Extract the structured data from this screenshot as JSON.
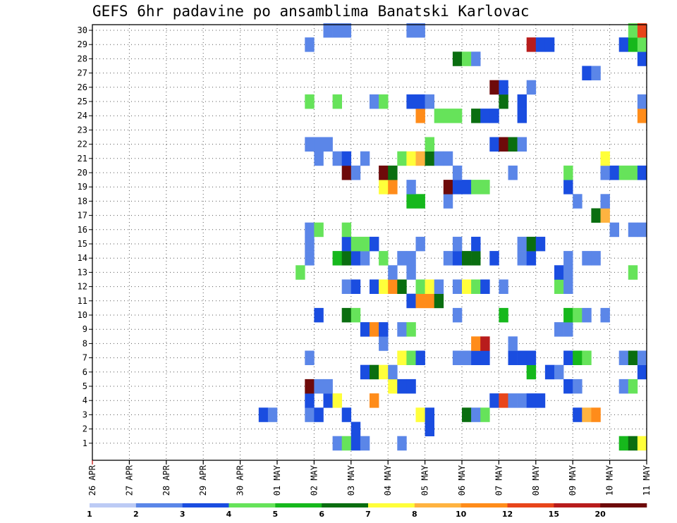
{
  "title": "GEFS 6hr padavine po ansamblima Banatski Karlovac",
  "chart_data": {
    "type": "heatmap",
    "title": "GEFS 6hr padavine po ansamblima Banatski Karlovac",
    "x_ticks": [
      "26 APR",
      "27 APR",
      "28 APR",
      "29 APR",
      "30 APR",
      "01 MAY",
      "02 MAY",
      "03 MAY",
      "04 MAY",
      "05 MAY",
      "06 MAY",
      "07 MAY",
      "08 MAY",
      "09 MAY",
      "10 MAY",
      "11 MAY"
    ],
    "y_ticks": [
      1,
      2,
      3,
      4,
      5,
      6,
      7,
      8,
      9,
      10,
      11,
      12,
      13,
      14,
      15,
      16,
      17,
      18,
      19,
      20,
      21,
      22,
      23,
      24,
      25,
      26,
      27,
      28,
      29,
      30
    ],
    "x_unit": "6-hour step (step 0 = 26 APR 00Z)",
    "y_label": "",
    "grid": true,
    "legend_levels": [
      "1",
      "2",
      "3",
      "4",
      "5",
      "6",
      "7",
      "8",
      "10",
      "12",
      "15",
      "20"
    ],
    "legend_colors": [
      "#bccbf5",
      "#5b86e8",
      "#1a4de0",
      "#66e35a",
      "#16b81c",
      "#0a6e10",
      "#ffff3a",
      "#ffb340",
      "#ff8c1a",
      "#e8451a",
      "#b81c1c",
      "#6e0a0a"
    ],
    "cells": [
      [
        1,
        26,
        1
      ],
      [
        1,
        27,
        3
      ],
      [
        1,
        28,
        2
      ],
      [
        1,
        29,
        1
      ],
      [
        1,
        33,
        1
      ],
      [
        1,
        57,
        4
      ],
      [
        1,
        58,
        5
      ],
      [
        1,
        59,
        6
      ],
      [
        2,
        28,
        2
      ],
      [
        2,
        36,
        2
      ],
      [
        3,
        18,
        2
      ],
      [
        3,
        19,
        1
      ],
      [
        3,
        23,
        1
      ],
      [
        3,
        24,
        2
      ],
      [
        3,
        27,
        2
      ],
      [
        3,
        35,
        6
      ],
      [
        3,
        36,
        2
      ],
      [
        3,
        40,
        5
      ],
      [
        3,
        41,
        1
      ],
      [
        3,
        42,
        3
      ],
      [
        3,
        52,
        2
      ],
      [
        3,
        53,
        7
      ],
      [
        3,
        54,
        8
      ],
      [
        4,
        23,
        2
      ],
      [
        4,
        25,
        2
      ],
      [
        4,
        26,
        6
      ],
      [
        4,
        30,
        8
      ],
      [
        4,
        43,
        2
      ],
      [
        4,
        44,
        9
      ],
      [
        4,
        45,
        1
      ],
      [
        4,
        46,
        1
      ],
      [
        4,
        47,
        2
      ],
      [
        4,
        48,
        2
      ],
      [
        5,
        23,
        11
      ],
      [
        5,
        24,
        1
      ],
      [
        5,
        25,
        1
      ],
      [
        5,
        32,
        6
      ],
      [
        5,
        33,
        2
      ],
      [
        5,
        34,
        2
      ],
      [
        5,
        51,
        2
      ],
      [
        5,
        52,
        1
      ],
      [
        5,
        57,
        1
      ],
      [
        5,
        58,
        3
      ],
      [
        6,
        29,
        2
      ],
      [
        6,
        30,
        5
      ],
      [
        6,
        31,
        6
      ],
      [
        6,
        32,
        1
      ],
      [
        6,
        47,
        4
      ],
      [
        6,
        49,
        2
      ],
      [
        6,
        50,
        1
      ],
      [
        6,
        59,
        2
      ],
      [
        7,
        23,
        1
      ],
      [
        7,
        33,
        6
      ],
      [
        7,
        34,
        3
      ],
      [
        7,
        35,
        2
      ],
      [
        7,
        39,
        1
      ],
      [
        7,
        40,
        1
      ],
      [
        7,
        41,
        2
      ],
      [
        7,
        42,
        2
      ],
      [
        7,
        45,
        2
      ],
      [
        7,
        46,
        2
      ],
      [
        7,
        47,
        2
      ],
      [
        7,
        51,
        2
      ],
      [
        7,
        52,
        4
      ],
      [
        7,
        53,
        3
      ],
      [
        7,
        57,
        1
      ],
      [
        7,
        58,
        5
      ],
      [
        7,
        59,
        1
      ],
      [
        8,
        31,
        1
      ],
      [
        8,
        41,
        8
      ],
      [
        8,
        42,
        10
      ],
      [
        8,
        45,
        1
      ],
      [
        9,
        29,
        2
      ],
      [
        9,
        30,
        8
      ],
      [
        9,
        31,
        2
      ],
      [
        9,
        33,
        1
      ],
      [
        9,
        34,
        3
      ],
      [
        9,
        50,
        1
      ],
      [
        9,
        51,
        1
      ],
      [
        10,
        24,
        2
      ],
      [
        10,
        27,
        5
      ],
      [
        10,
        28,
        3
      ],
      [
        10,
        39,
        1
      ],
      [
        10,
        44,
        4
      ],
      [
        10,
        51,
        4
      ],
      [
        10,
        52,
        3
      ],
      [
        10,
        53,
        1
      ],
      [
        10,
        55,
        1
      ],
      [
        11,
        34,
        2
      ],
      [
        11,
        35,
        8
      ],
      [
        11,
        36,
        8
      ],
      [
        11,
        37,
        5
      ],
      [
        12,
        27,
        1
      ],
      [
        12,
        28,
        2
      ],
      [
        12,
        30,
        2
      ],
      [
        12,
        31,
        6
      ],
      [
        12,
        32,
        8
      ],
      [
        12,
        33,
        5
      ],
      [
        12,
        35,
        3
      ],
      [
        12,
        36,
        6
      ],
      [
        12,
        37,
        1
      ],
      [
        12,
        39,
        1
      ],
      [
        12,
        40,
        6
      ],
      [
        12,
        41,
        3
      ],
      [
        12,
        42,
        2
      ],
      [
        12,
        44,
        1
      ],
      [
        12,
        50,
        3
      ],
      [
        12,
        51,
        1
      ],
      [
        13,
        22,
        3
      ],
      [
        13,
        32,
        1
      ],
      [
        13,
        34,
        1
      ],
      [
        13,
        50,
        2
      ],
      [
        13,
        51,
        1
      ],
      [
        13,
        58,
        3
      ],
      [
        14,
        23,
        1
      ],
      [
        14,
        26,
        4
      ],
      [
        14,
        27,
        5
      ],
      [
        14,
        28,
        2
      ],
      [
        14,
        29,
        1
      ],
      [
        14,
        31,
        3
      ],
      [
        14,
        33,
        1
      ],
      [
        14,
        34,
        1
      ],
      [
        14,
        38,
        1
      ],
      [
        14,
        39,
        2
      ],
      [
        14,
        40,
        5
      ],
      [
        14,
        41,
        5
      ],
      [
        14,
        43,
        2
      ],
      [
        14,
        46,
        1
      ],
      [
        14,
        47,
        2
      ],
      [
        14,
        51,
        1
      ],
      [
        14,
        53,
        1
      ],
      [
        14,
        54,
        1
      ],
      [
        15,
        23,
        1
      ],
      [
        15,
        27,
        2
      ],
      [
        15,
        28,
        3
      ],
      [
        15,
        29,
        3
      ],
      [
        15,
        30,
        2
      ],
      [
        15,
        35,
        1
      ],
      [
        15,
        39,
        1
      ],
      [
        15,
        41,
        2
      ],
      [
        15,
        46,
        1
      ],
      [
        15,
        47,
        5
      ],
      [
        15,
        48,
        2
      ],
      [
        16,
        23,
        1
      ],
      [
        16,
        24,
        3
      ],
      [
        16,
        27,
        3
      ],
      [
        16,
        56,
        1
      ],
      [
        16,
        58,
        1
      ],
      [
        16,
        59,
        1
      ],
      [
        17,
        54,
        5
      ],
      [
        17,
        55,
        7
      ],
      [
        18,
        34,
        4
      ],
      [
        18,
        35,
        4
      ],
      [
        18,
        38,
        1
      ],
      [
        18,
        52,
        1
      ],
      [
        18,
        55,
        1
      ],
      [
        19,
        31,
        6
      ],
      [
        19,
        32,
        8
      ],
      [
        19,
        34,
        1
      ],
      [
        19,
        38,
        11
      ],
      [
        19,
        39,
        2
      ],
      [
        19,
        40,
        2
      ],
      [
        19,
        41,
        3
      ],
      [
        19,
        42,
        3
      ],
      [
        19,
        51,
        2
      ],
      [
        20,
        27,
        11
      ],
      [
        20,
        28,
        1
      ],
      [
        20,
        31,
        11
      ],
      [
        20,
        32,
        5
      ],
      [
        20,
        39,
        1
      ],
      [
        20,
        45,
        1
      ],
      [
        20,
        51,
        3
      ],
      [
        20,
        55,
        1
      ],
      [
        20,
        56,
        2
      ],
      [
        20,
        57,
        3
      ],
      [
        20,
        58,
        3
      ],
      [
        20,
        59,
        2
      ],
      [
        21,
        24,
        1
      ],
      [
        21,
        26,
        1
      ],
      [
        21,
        27,
        2
      ],
      [
        21,
        29,
        1
      ],
      [
        21,
        33,
        3
      ],
      [
        21,
        34,
        6
      ],
      [
        21,
        35,
        7
      ],
      [
        21,
        36,
        5
      ],
      [
        21,
        37,
        1
      ],
      [
        21,
        38,
        1
      ],
      [
        21,
        55,
        6
      ],
      [
        22,
        23,
        1
      ],
      [
        22,
        24,
        1
      ],
      [
        22,
        25,
        1
      ],
      [
        22,
        36,
        3
      ],
      [
        22,
        43,
        2
      ],
      [
        22,
        44,
        11
      ],
      [
        22,
        45,
        5
      ],
      [
        22,
        46,
        1
      ],
      [
        24,
        35,
        8
      ],
      [
        24,
        37,
        3
      ],
      [
        24,
        38,
        3
      ],
      [
        24,
        39,
        3
      ],
      [
        24,
        41,
        5
      ],
      [
        24,
        42,
        2
      ],
      [
        24,
        43,
        2
      ],
      [
        24,
        46,
        2
      ],
      [
        24,
        59,
        8
      ],
      [
        25,
        23,
        3
      ],
      [
        25,
        26,
        3
      ],
      [
        25,
        30,
        1
      ],
      [
        25,
        31,
        3
      ],
      [
        25,
        34,
        2
      ],
      [
        25,
        35,
        2
      ],
      [
        25,
        36,
        1
      ],
      [
        25,
        44,
        5
      ],
      [
        25,
        46,
        2
      ],
      [
        25,
        59,
        1
      ],
      [
        26,
        43,
        11
      ],
      [
        26,
        44,
        2
      ],
      [
        26,
        47,
        1
      ],
      [
        27,
        53,
        2
      ],
      [
        27,
        54,
        1
      ],
      [
        28,
        39,
        5
      ],
      [
        28,
        40,
        3
      ],
      [
        28,
        41,
        1
      ],
      [
        28,
        59,
        2
      ],
      [
        29,
        23,
        1
      ],
      [
        29,
        47,
        10
      ],
      [
        29,
        48,
        2
      ],
      [
        29,
        49,
        2
      ],
      [
        29,
        57,
        2
      ],
      [
        29,
        58,
        4
      ],
      [
        29,
        59,
        3
      ],
      [
        30,
        25,
        1
      ],
      [
        30,
        26,
        1
      ],
      [
        30,
        27,
        1
      ],
      [
        30,
        34,
        1
      ],
      [
        30,
        35,
        1
      ],
      [
        30,
        58,
        3
      ],
      [
        30,
        59,
        9
      ]
    ]
  }
}
